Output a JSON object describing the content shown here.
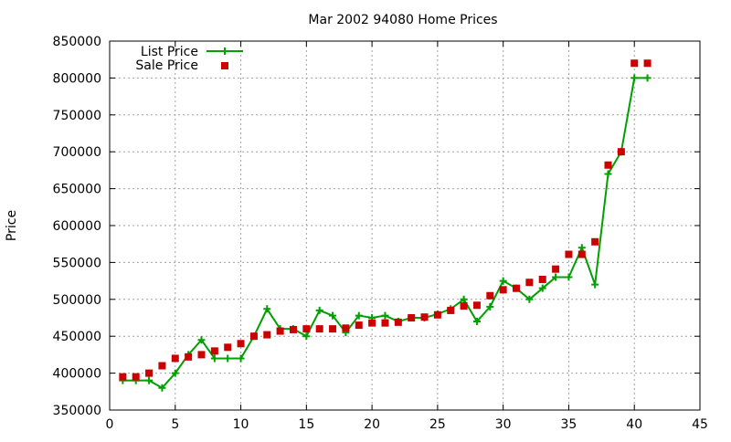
{
  "chart_data": {
    "type": "line",
    "title": "Mar 2002 94080 Home Prices",
    "xlabel": "",
    "ylabel": "Price",
    "xlim": [
      0,
      45
    ],
    "ylim": [
      350000,
      850000
    ],
    "x_ticks": [
      0,
      5,
      10,
      15,
      20,
      25,
      30,
      35,
      40,
      45
    ],
    "y_ticks": [
      350000,
      400000,
      450000,
      500000,
      550000,
      600000,
      650000,
      700000,
      750000,
      800000,
      850000
    ],
    "grid": true,
    "legend_position": "top-left",
    "series": [
      {
        "name": "List Price",
        "style": "line-with-plus-markers",
        "color": "#00a000",
        "x": [
          1,
          2,
          3,
          4,
          5,
          6,
          7,
          8,
          9,
          10,
          11,
          12,
          13,
          14,
          15,
          16,
          17,
          18,
          19,
          20,
          21,
          22,
          23,
          24,
          25,
          26,
          27,
          28,
          29,
          30,
          31,
          32,
          33,
          34,
          35,
          36,
          37,
          38,
          39,
          40,
          41
        ],
        "y": [
          390000,
          390000,
          390000,
          380000,
          400000,
          425000,
          445000,
          420000,
          420000,
          420000,
          450000,
          487000,
          460000,
          460000,
          450000,
          485000,
          478000,
          455000,
          478000,
          475000,
          478000,
          470000,
          475000,
          475000,
          480000,
          487000,
          500000,
          470000,
          490000,
          525000,
          515000,
          500000,
          515000,
          530000,
          530000,
          570000,
          520000,
          670000,
          700000,
          800000,
          800000
        ]
      },
      {
        "name": "Sale Price",
        "style": "square-points",
        "color": "#cc0000",
        "x": [
          1,
          2,
          3,
          4,
          5,
          6,
          7,
          8,
          9,
          10,
          11,
          12,
          13,
          14,
          15,
          16,
          17,
          18,
          19,
          20,
          21,
          22,
          23,
          24,
          25,
          26,
          27,
          28,
          29,
          30,
          31,
          32,
          33,
          34,
          35,
          36,
          37,
          38,
          39,
          40,
          41
        ],
        "y": [
          395000,
          395000,
          400000,
          410000,
          420000,
          422000,
          425000,
          430000,
          435000,
          440000,
          450000,
          452000,
          457000,
          459000,
          460000,
          460000,
          460000,
          461000,
          465000,
          468000,
          468000,
          469000,
          475000,
          476000,
          479000,
          485000,
          491000,
          492000,
          505000,
          513000,
          515000,
          523000,
          527000,
          541000,
          561000,
          561000,
          578000,
          682000,
          700000,
          820000,
          820000
        ]
      }
    ]
  }
}
